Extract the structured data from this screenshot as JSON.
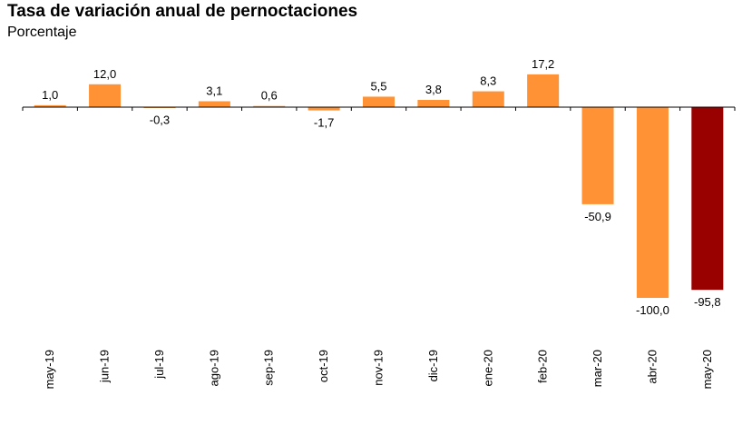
{
  "chart_data": {
    "type": "bar",
    "title": "Tasa de variación anual de pernoctaciones",
    "subtitle": "Porcentaje",
    "xlabel": "",
    "ylabel": "",
    "categories": [
      "may-19",
      "jun-19",
      "jul-19",
      "ago-19",
      "sep-19",
      "oct-19",
      "nov-19",
      "dic-19",
      "ene-20",
      "feb-20",
      "mar-20",
      "abr-20",
      "may-20"
    ],
    "values": [
      1.0,
      12.0,
      -0.3,
      3.1,
      0.6,
      -1.7,
      5.5,
      3.8,
      8.3,
      17.2,
      -50.9,
      -100.0,
      -95.8
    ],
    "labels": [
      "1,0",
      "12,0",
      "-0,3",
      "3,1",
      "0,6",
      "-1,7",
      "5,5",
      "3,8",
      "8,3",
      "17,2",
      "-50,9",
      "-100,0",
      "-95,8"
    ],
    "ylim": [
      -100,
      20
    ],
    "grid": false,
    "legend": "none",
    "colors": {
      "default": "#FF9234",
      "highlight": "#990000",
      "highlight_index": 12,
      "axis": "#000000"
    }
  }
}
